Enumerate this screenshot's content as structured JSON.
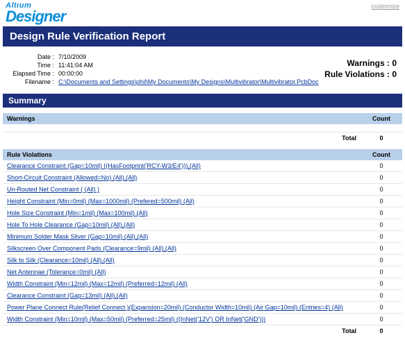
{
  "logo": {
    "top": "Altıum",
    "bottom": "Designer"
  },
  "customize": "customize",
  "title": "Design Rule Verification Report",
  "meta": {
    "date_label": "Date :",
    "date": "7/10/2009",
    "time_label": "Time :",
    "time": "11:41:04 AM",
    "elapsed_label": "Elapsed Time :",
    "elapsed": "00:00:00",
    "filename_label": "Filename :",
    "filename": "C:\\Documents and Settings\\phil\\My Documents\\My Designs\\Multivibrator\\Multivibrator.PcbDoc"
  },
  "stats": {
    "warnings_label": "Warnings :",
    "warnings": "0",
    "violations_label": "Rule Violations :",
    "violations": "0"
  },
  "summary_header": "Summary",
  "warnings_table": {
    "col1": "Warnings",
    "col2": "Count",
    "total_label": "Total",
    "total_value": "0"
  },
  "violations_table": {
    "col1": "Rule Violations",
    "col2": "Count",
    "rows": [
      {
        "label": "Clearance Constraint (Gap=10mil) ((HasFootprint('RCY-W3/E4'))),(All)",
        "count": "0"
      },
      {
        "label": "Short-Circuit Constraint (Allowed=No) (All),(All)",
        "count": "0"
      },
      {
        "label": "Un-Routed Net Constraint ( (All) )",
        "count": "0"
      },
      {
        "label": "Height Constraint (Min=0mil) (Max=1000mil) (Prefered=500mil) (All)",
        "count": "0"
      },
      {
        "label": "Hole Size Constraint (Min=1mil) (Max=100mil) (All)",
        "count": "0"
      },
      {
        "label": "Hole To Hole Clearance (Gap=10mil) (All),(All)",
        "count": "0"
      },
      {
        "label": "Minimum Solder Mask Sliver (Gap=10mil) (All),(All)",
        "count": "0"
      },
      {
        "label": "Silkscreen Over Component Pads (Clearance=9mil) (All),(All)",
        "count": "0"
      },
      {
        "label": "Silk to Silk (Clearance=10mil) (All),(All)",
        "count": "0"
      },
      {
        "label": "Net Antennae (Tolerance=0mil) (All)",
        "count": "0"
      },
      {
        "label": "Width Constraint (Min=12mil) (Max=12mil) (Preferred=12mil) (All)",
        "count": "0"
      },
      {
        "label": "Clearance Constraint (Gap=13mil) (All),(All)",
        "count": "0"
      },
      {
        "label": "Power Plane Connect Rule(Relief Connect )(Expansion=20mil) (Conductor Width=10mil) (Air Gap=10mil) (Entries=4) (All)",
        "count": "0"
      },
      {
        "label": "Width Constraint (Min=10mil) (Max=50mil) (Preferred=25mil) ((InNet('12V') OR InNet('GND')))",
        "count": "0"
      }
    ],
    "total_label": "Total",
    "total_value": "0"
  }
}
